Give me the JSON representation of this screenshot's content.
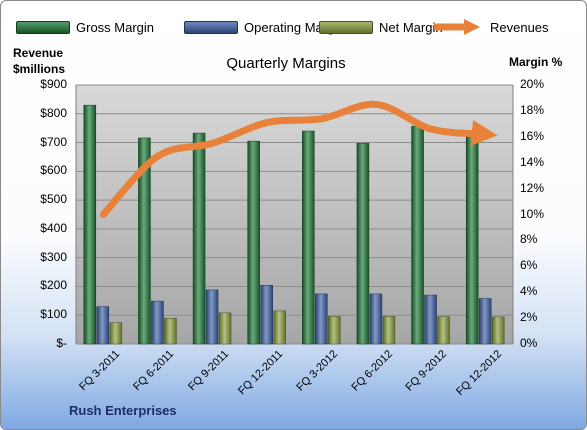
{
  "chart_data": {
    "type": "bar",
    "title": "Quarterly Margins",
    "categories": [
      "FQ 3-2011",
      "FQ 6-2011",
      "FQ 9-2011",
      "FQ 12-2011",
      "FQ 3-2012",
      "FQ 6-2012",
      "FQ 9-2012",
      "FQ 12-2012"
    ],
    "series": [
      {
        "name": "Gross Margin",
        "axis": "left",
        "kind": "bar",
        "color": "#1e7a38",
        "values": [
          830,
          716,
          733,
          705,
          740,
          698,
          757,
          722
        ]
      },
      {
        "name": "Operating Margin",
        "axis": "left",
        "kind": "bar",
        "color": "#3f62a8",
        "values": [
          130,
          149,
          188,
          204,
          174,
          174,
          170,
          158
        ]
      },
      {
        "name": "Net Margin",
        "axis": "left",
        "kind": "bar",
        "color": "#8aa13d",
        "values": [
          74,
          89,
          108,
          115,
          96,
          96,
          95,
          94
        ]
      },
      {
        "name": "Revenues",
        "axis": "right",
        "kind": "line",
        "color": "#e8823a",
        "values": [
          10,
          14.5,
          15.5,
          17.1,
          17.4,
          18.5,
          16.6,
          16.2
        ]
      }
    ],
    "y_left": {
      "label_lines": [
        "Revenue",
        "$millions"
      ],
      "min": 0,
      "max": 900,
      "step": 100,
      "ticks": [
        "$-",
        "$100",
        "$200",
        "$300",
        "$400",
        "$500",
        "$600",
        "$700",
        "$800",
        "$900"
      ]
    },
    "y_right": {
      "label": "Margin %",
      "min": 0,
      "max": 20,
      "step": 2,
      "ticks": [
        "0%",
        "2%",
        "4%",
        "6%",
        "8%",
        "10%",
        "12%",
        "14%",
        "16%",
        "18%",
        "20%"
      ]
    },
    "grid": true,
    "legend_position": "top",
    "footer_text": "Rush Enterprises"
  }
}
